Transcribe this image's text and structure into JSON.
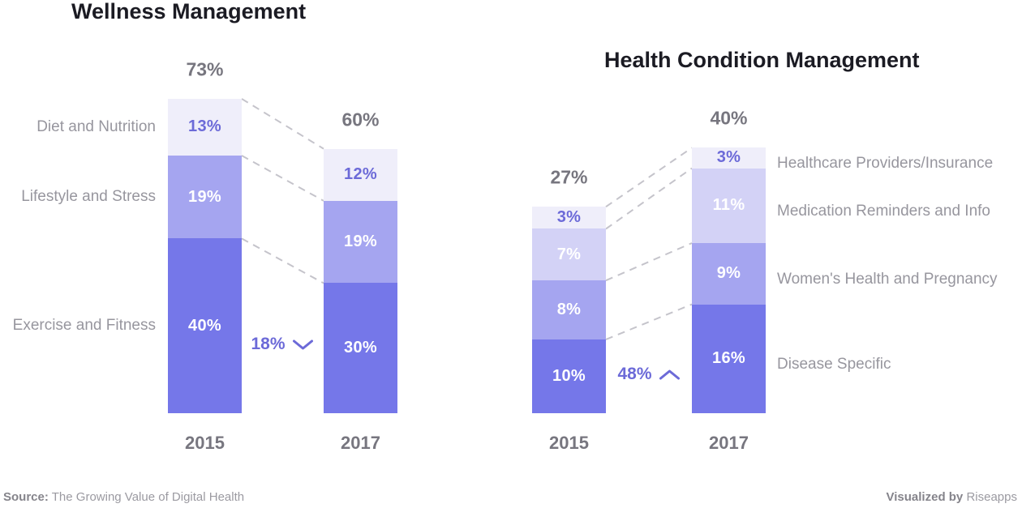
{
  "chart_data": [
    {
      "type": "bar",
      "variant": "stacked-column-comparison",
      "title": "Wellness Management",
      "categories": [
        "2015",
        "2017"
      ],
      "totals": [
        "73%",
        "60%"
      ],
      "value_suffix": "%",
      "legend_position": "left",
      "stack_order": "top-to-bottom",
      "series": [
        {
          "name": "Diet and Nutrition",
          "values": [
            13,
            12
          ],
          "fill": "#EFEEFA",
          "label_color": "#6C6AD8"
        },
        {
          "name": "Lifestyle and Stress",
          "values": [
            19,
            19
          ],
          "fill": "#A5A5F0",
          "label_color": "#FFFFFF"
        },
        {
          "name": "Exercise and Fitness",
          "values": [
            40,
            30
          ],
          "fill": "#7577E9",
          "label_color": "#FFFFFF"
        }
      ],
      "change": {
        "label": "18%",
        "direction": "down"
      }
    },
    {
      "type": "bar",
      "variant": "stacked-column-comparison",
      "title": "Health Condition Management",
      "categories": [
        "2015",
        "2017"
      ],
      "totals": [
        "27%",
        "40%"
      ],
      "value_suffix": "%",
      "legend_position": "right",
      "stack_order": "top-to-bottom",
      "series": [
        {
          "name": "Healthcare Providers/Insurance",
          "values": [
            3,
            3
          ],
          "fill": "#EFEEFA",
          "label_color": "#6C6AD8"
        },
        {
          "name": "Medication Reminders and Info",
          "values": [
            7,
            11
          ],
          "fill": "#D3D2F6",
          "label_color": "#FFFFFF"
        },
        {
          "name": "Women's Health and Pregnancy",
          "values": [
            8,
            9
          ],
          "fill": "#A5A5F0",
          "label_color": "#FFFFFF"
        },
        {
          "name": "Disease Specific",
          "values": [
            10,
            16
          ],
          "fill": "#7577E9",
          "label_color": "#FFFFFF"
        }
      ],
      "change": {
        "label": "48%",
        "direction": "up"
      }
    }
  ],
  "footer": {
    "source_label": "Source:",
    "source_text": "The Growing Value of Digital Health",
    "visualized_label": "Visualized by",
    "visualized_text": "Riseapps"
  },
  "colors": {
    "title": "#1B1B23",
    "total_label": "#77767F",
    "category_label": "#97969E",
    "accent_purple": "#6C6AD8",
    "connector": "#C5C4CB",
    "background": "#FFFFFF"
  }
}
